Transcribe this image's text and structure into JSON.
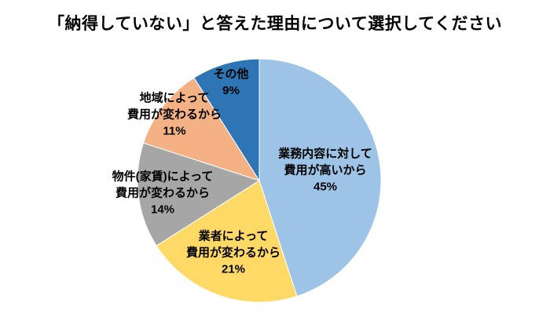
{
  "chart_data": {
    "type": "pie",
    "title": "「納得していない」と答えた理由について選択してください",
    "labels": [
      "業務内容に対して\n費用が高いから",
      "業者によって\n費用が変わるから",
      "物件(家賃)によって\n費用が変わるから",
      "地域によって\n費用が変わるから",
      "その他"
    ],
    "values": [
      45,
      21,
      14,
      11,
      9
    ],
    "value_suffix": "%",
    "colors": [
      "#9DC3E6",
      "#FFD966",
      "#A6A6A6",
      "#F4B183",
      "#2E75B6"
    ],
    "start_angle_deg": 0,
    "direction": "clockwise",
    "legend": "none",
    "background": "#ffffff"
  }
}
